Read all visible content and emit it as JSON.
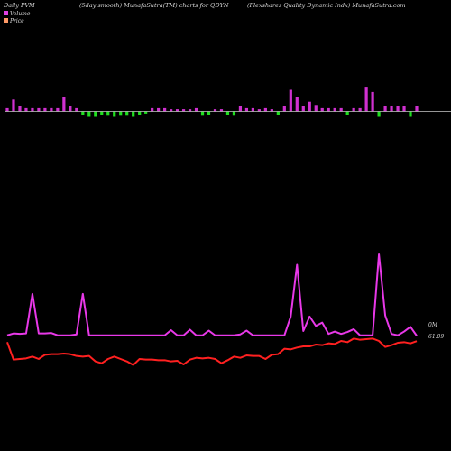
{
  "header": {
    "left": "Daily PVM",
    "center": "(5day smooth) MunafaSutra(TM) charts for QDYN",
    "right": "(Flexshares Quality Dynamic Indx) MunafaSutra.com"
  },
  "legend": [
    {
      "label": "Volume",
      "color": "#e040e0"
    },
    {
      "label": "Price",
      "color": "#ff9966"
    }
  ],
  "last_labels": {
    "volume": "0M",
    "price": "61.09"
  },
  "colors": {
    "up": "#d030d0",
    "down": "#20e020",
    "volume_line": "#e838e8",
    "price_line": "#ff2020",
    "baseline": "#c8c8c8"
  },
  "chart_data": {
    "type": "line",
    "title": "(5day smooth) MunafaSutra(TM) charts for QDYN",
    "count": 66,
    "pvm": [
      {
        "v": 3,
        "up": true
      },
      {
        "v": 11,
        "up": true
      },
      {
        "v": 5,
        "up": true
      },
      {
        "v": 3,
        "up": true
      },
      {
        "v": 3,
        "up": true
      },
      {
        "v": 3,
        "up": true
      },
      {
        "v": 3,
        "up": true
      },
      {
        "v": 3,
        "up": true
      },
      {
        "v": 3,
        "up": true
      },
      {
        "v": 13,
        "up": true
      },
      {
        "v": 5,
        "up": true
      },
      {
        "v": 3,
        "up": true
      },
      {
        "v": 3,
        "up": false
      },
      {
        "v": 5,
        "up": false
      },
      {
        "v": 5,
        "up": false
      },
      {
        "v": 3,
        "up": false
      },
      {
        "v": 4,
        "up": false
      },
      {
        "v": 5,
        "up": false
      },
      {
        "v": 4,
        "up": false
      },
      {
        "v": 4,
        "up": false
      },
      {
        "v": 5,
        "up": false
      },
      {
        "v": 3,
        "up": false
      },
      {
        "v": 2,
        "up": false
      },
      {
        "v": 3,
        "up": true
      },
      {
        "v": 3,
        "up": true
      },
      {
        "v": 3,
        "up": true
      },
      {
        "v": 2,
        "up": true
      },
      {
        "v": 2,
        "up": true
      },
      {
        "v": 2,
        "up": true
      },
      {
        "v": 2,
        "up": true
      },
      {
        "v": 3,
        "up": true
      },
      {
        "v": 4,
        "up": false
      },
      {
        "v": 3,
        "up": false
      },
      {
        "v": 2,
        "up": true
      },
      {
        "v": 2,
        "up": true
      },
      {
        "v": 3,
        "up": false
      },
      {
        "v": 4,
        "up": false
      },
      {
        "v": 5,
        "up": true
      },
      {
        "v": 3,
        "up": true
      },
      {
        "v": 3,
        "up": true
      },
      {
        "v": 2,
        "up": true
      },
      {
        "v": 3,
        "up": true
      },
      {
        "v": 2,
        "up": true
      },
      {
        "v": 3,
        "up": false
      },
      {
        "v": 5,
        "up": true
      },
      {
        "v": 20,
        "up": true
      },
      {
        "v": 13,
        "up": true
      },
      {
        "v": 5,
        "up": true
      },
      {
        "v": 9,
        "up": true
      },
      {
        "v": 6,
        "up": true
      },
      {
        "v": 3,
        "up": true
      },
      {
        "v": 3,
        "up": true
      },
      {
        "v": 3,
        "up": true
      },
      {
        "v": 3,
        "up": true
      },
      {
        "v": 3,
        "up": false
      },
      {
        "v": 3,
        "up": true
      },
      {
        "v": 3,
        "up": true
      },
      {
        "v": 22,
        "up": true
      },
      {
        "v": 18,
        "up": true
      },
      {
        "v": 5,
        "up": false
      },
      {
        "v": 5,
        "up": true
      },
      {
        "v": 5,
        "up": true
      },
      {
        "v": 5,
        "up": true
      },
      {
        "v": 5,
        "up": true
      },
      {
        "v": 5,
        "up": false
      },
      {
        "v": 5,
        "up": true
      }
    ],
    "series": [
      {
        "name": "Volume",
        "values": [
          0.12,
          0.16,
          0.15,
          0.16,
          1,
          0.16,
          0.16,
          0.17,
          0.12,
          0.12,
          0.12,
          0.14,
          1,
          0.12,
          0.12,
          0.12,
          0.12,
          0.12,
          0.12,
          0.12,
          0.12,
          0.12,
          0.12,
          0.12,
          0.12,
          0.12,
          0.23,
          0.12,
          0.12,
          0.24,
          0.12,
          0.12,
          0.22,
          0.12,
          0.12,
          0.12,
          0.12,
          0.14,
          0.22,
          0.12,
          0.12,
          0.12,
          0.12,
          0.12,
          0.12,
          0.52,
          1.62,
          0.21,
          0.52,
          0.32,
          0.39,
          0.15,
          0.2,
          0.15,
          0.19,
          0.25,
          0.12,
          0.12,
          0.12,
          1.84,
          0.54,
          0.15,
          0.12,
          0.2,
          0.3,
          0.11
        ]
      },
      {
        "name": "Price",
        "values": [
          61.0,
          59.55,
          59.6,
          59.65,
          59.8,
          59.6,
          59.95,
          60.0,
          60.0,
          60.05,
          60.0,
          59.85,
          59.8,
          59.85,
          59.4,
          59.25,
          59.6,
          59.8,
          59.6,
          59.4,
          59.1,
          59.6,
          59.55,
          59.55,
          59.5,
          59.5,
          59.4,
          59.45,
          59.15,
          59.55,
          59.7,
          59.65,
          59.7,
          59.6,
          59.25,
          59.5,
          59.8,
          59.7,
          59.9,
          59.85,
          59.85,
          59.6,
          59.95,
          60.0,
          60.45,
          60.4,
          60.55,
          60.65,
          60.65,
          60.8,
          60.75,
          60.9,
          60.85,
          61.1,
          61.0,
          61.3,
          61.2,
          61.25,
          61.3,
          61.1,
          60.6,
          60.75,
          60.95,
          61.0,
          60.9,
          61.09
        ]
      }
    ]
  }
}
